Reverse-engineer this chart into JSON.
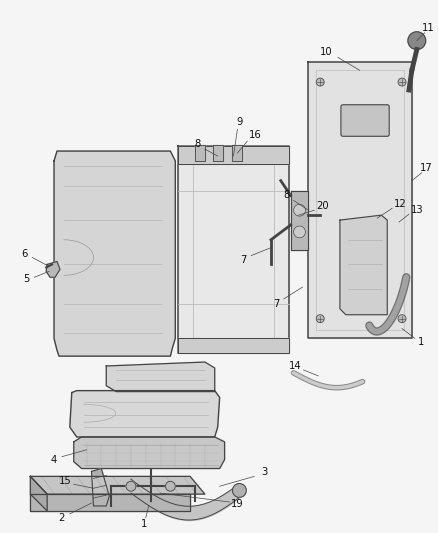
{
  "background_color": "#f5f5f5",
  "line_color": "#444444",
  "fill_light": "#d8d8d8",
  "fill_mid": "#c0c0c0",
  "fill_dark": "#a8a8a8",
  "text_color": "#111111",
  "fig_width": 4.38,
  "fig_height": 5.33,
  "dpi": 100
}
